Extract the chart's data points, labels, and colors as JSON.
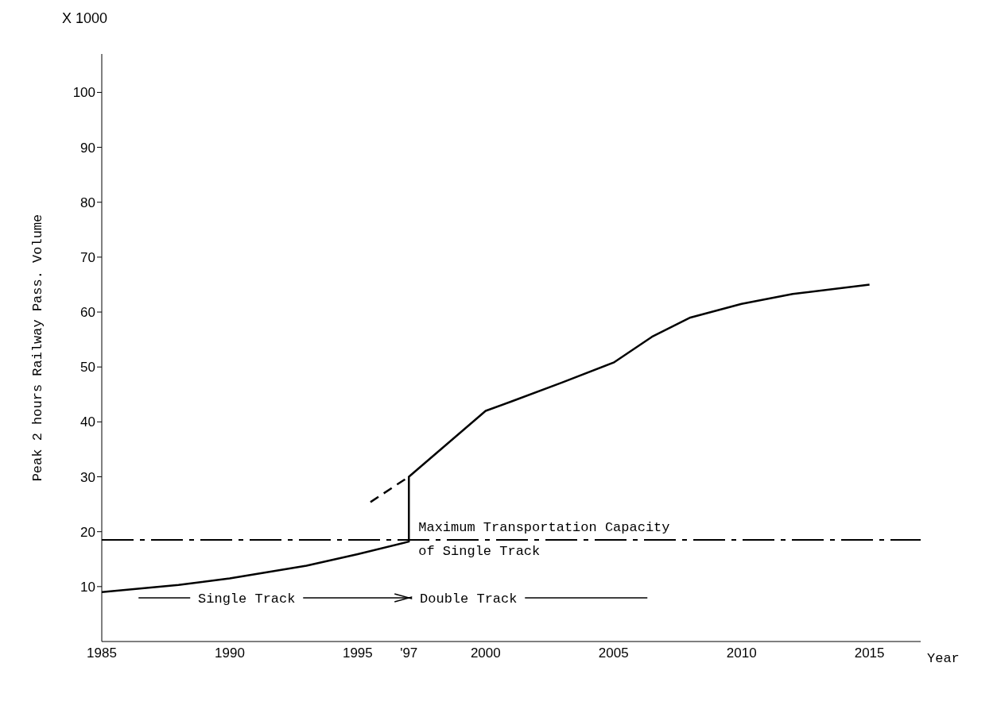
{
  "chart_data": {
    "type": "line",
    "xlabel": "Year",
    "ylabel": "Peak 2 hours Railway Pass. Volume",
    "annotations": [
      "X 1000",
      "Single Track",
      "Double Track"
    ],
    "series": [
      {
        "color": "#000000",
        "line_style": "solid",
        "x": [
          1985,
          1988,
          1990,
          1993,
          1995,
          1997,
          1997,
          1998.5,
          2000,
          2001,
          2003,
          2005,
          2006.5,
          2008,
          2010,
          2012,
          2015
        ],
        "values": [
          9,
          10.3,
          11.5,
          13.8,
          15.9,
          18.2,
          30,
          36,
          42,
          43.7,
          47.2,
          50.8,
          55.5,
          59,
          61.5,
          63.3,
          65
        ]
      },
      {
        "color": "#000000",
        "line_style": "dashed",
        "x": [
          1995.5,
          1997
        ],
        "values": [
          25.4,
          30
        ]
      }
    ],
    "ref_lines": [
      {
        "axis": "y",
        "value": 18.5,
        "label": "Maximum Transportation Capacity of Single Track",
        "color": "#000000",
        "line_style": "dashed"
      }
    ],
    "xlim": [
      1985,
      2017
    ],
    "xticks": [
      1985,
      1990,
      1995,
      {
        "value": 1997,
        "label": "'97"
      },
      2000,
      2005,
      2010,
      2015
    ],
    "ylim": [
      0,
      107
    ],
    "yticks": [
      10,
      20,
      30,
      40,
      50,
      60,
      70,
      80,
      90,
      100
    ],
    "marker": "none"
  }
}
